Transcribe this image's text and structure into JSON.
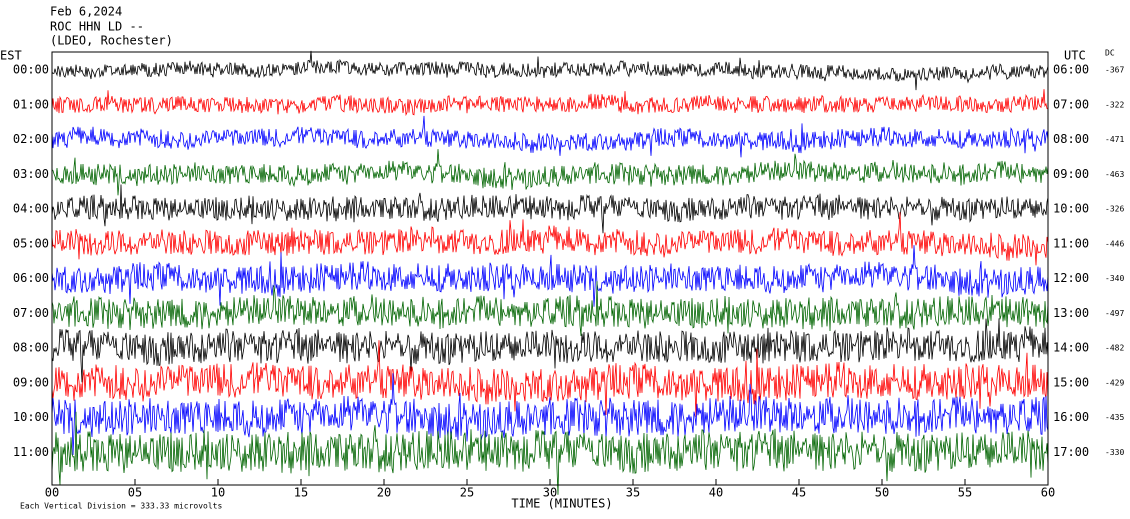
{
  "chart_data": {
    "type": "helicorder",
    "title_lines": [
      "Feb 6,2024",
      "ROC HHN LD --",
      "(LDEO, Rochester)"
    ],
    "left_axis_label": "EST",
    "right_axis_label": "UTC",
    "dc_label": "DC",
    "rows_est": [
      "00:00",
      "01:00",
      "02:00",
      "03:00",
      "04:00",
      "05:00",
      "06:00",
      "07:00",
      "08:00",
      "09:00",
      "10:00",
      "11:00"
    ],
    "rows_utc": [
      "06:00",
      "07:00",
      "08:00",
      "09:00",
      "10:00",
      "11:00",
      "12:00",
      "13:00",
      "14:00",
      "15:00",
      "16:00",
      "17:00"
    ],
    "dc_values": [
      -367,
      -322,
      -471,
      -463,
      -326,
      -446,
      -340,
      -497,
      -482,
      -429,
      -435,
      -330
    ],
    "trace_colors": [
      "#000000",
      "#ff0000",
      "#0000ff",
      "#006400"
    ],
    "xlim": [
      0,
      60
    ],
    "xticks": [
      {
        "value": 0,
        "label": "00"
      },
      {
        "value": 5,
        "label": "05"
      },
      10,
      15,
      20,
      25,
      30,
      35,
      40,
      45,
      50,
      55,
      60
    ],
    "xlabel": "TIME (MINUTES)",
    "note": "Each Vertical Division =  333.33 microvolts"
  }
}
